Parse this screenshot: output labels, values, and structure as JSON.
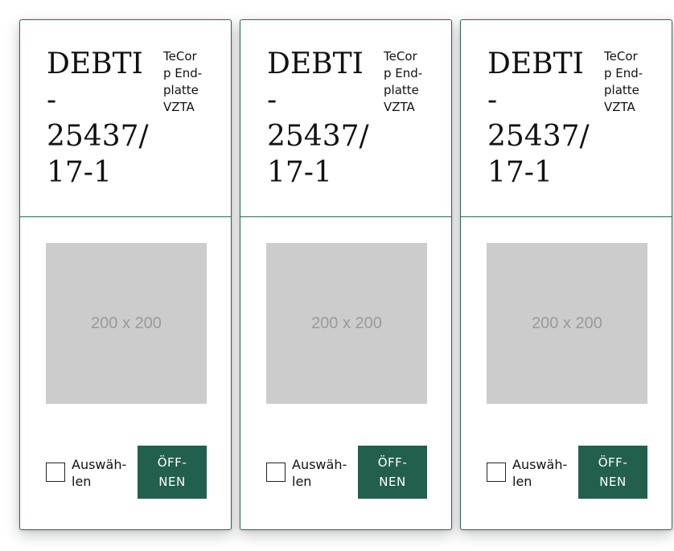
{
  "cards": [
    {
      "title": "DEBTI\n-\n25437/\n17-1",
      "subtitle": "TeCor\np End-\nplatte\nVZTA",
      "image_placeholder": "200 x 200",
      "select_label": "Auswäh-\nlen",
      "open_label": "ÖFF-\nNEN"
    },
    {
      "title": "DEBTI\n-\n25437/\n17-1",
      "subtitle": "TeCor\np End-\nplatte\nVZTA",
      "image_placeholder": "200 x 200",
      "select_label": "Auswäh-\nlen",
      "open_label": "ÖFF-\nNEN"
    },
    {
      "title": "DEBTI\n-\n25437/\n17-1",
      "subtitle": "TeCor\np End-\nplatte\nVZTA",
      "image_placeholder": "200 x 200",
      "select_label": "Auswäh-\nlen",
      "open_label": "ÖFF-\nNEN"
    }
  ],
  "colors": {
    "accent": "#22604d",
    "border": "#2e6b58",
    "placeholder_bg": "#cccccc",
    "placeholder_text": "#9a9a9a"
  }
}
